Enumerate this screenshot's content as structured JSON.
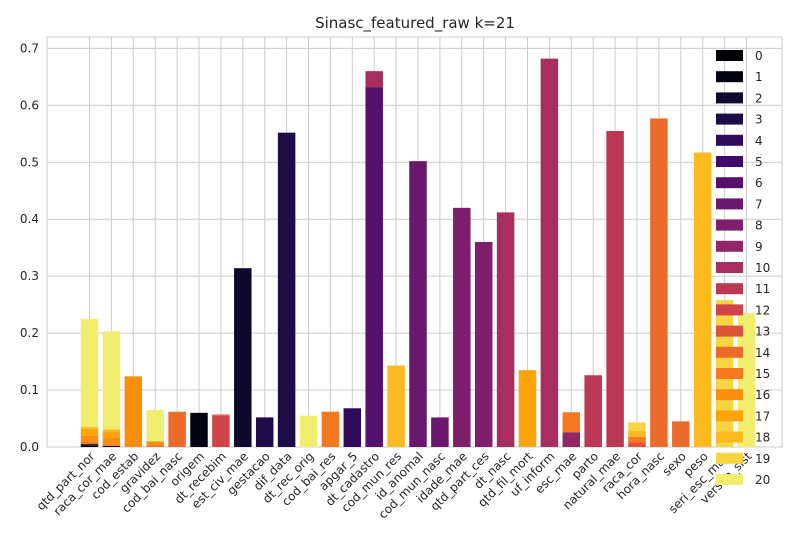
{
  "chart_data": {
    "type": "bar",
    "stacked": true,
    "title": "Sinasc_featured_raw k=21",
    "xlabel": "",
    "ylabel": "",
    "ylim": [
      0,
      0.72
    ],
    "yticks": [
      "0.0",
      "0.1",
      "0.2",
      "0.3",
      "0.4",
      "0.5",
      "0.6",
      "0.7"
    ],
    "grid": true,
    "legend_placement": "right",
    "categories": [
      "qtd_part_nor",
      "raca_cor_mae",
      "cod_estab",
      "gravidez",
      "cod_bai_nasc",
      "origem",
      "dt_recebim",
      "est_civ_mae",
      "gestacao",
      "dif_data",
      "dt_rec_orig",
      "cod_bai_res",
      "apgar_5",
      "dt_cadastro",
      "cod_mun_res",
      "id_anomal",
      "cod_mun_nasc",
      "idade_mae",
      "qtd_part_ces",
      "dt_nasc",
      "qtd_fil_mort",
      "uf_inform",
      "esc_mae",
      "parto",
      "natural_mae",
      "raca_cor",
      "hora_nasc",
      "sexo",
      "peso",
      "seri_esc_mae",
      "versao_sist"
    ],
    "series": [
      {
        "name": "0",
        "values": [
          0.003,
          0.001,
          0,
          0,
          0,
          0,
          0,
          0,
          0,
          0,
          0,
          0,
          0,
          0,
          0,
          0,
          0,
          0,
          0,
          0,
          0,
          0,
          0,
          0,
          0,
          0,
          0,
          0,
          0,
          0,
          0
        ]
      },
      {
        "name": "1",
        "values": [
          0.002,
          0.001,
          0,
          0,
          0,
          0.06,
          0,
          0,
          0,
          0,
          0,
          0,
          0,
          0,
          0,
          0,
          0,
          0,
          0,
          0,
          0,
          0,
          0,
          0,
          0,
          0,
          0,
          0,
          0,
          0,
          0
        ]
      },
      {
        "name": "2",
        "values": [
          0,
          0,
          0,
          0,
          0,
          0,
          0,
          0.314,
          0,
          0,
          0,
          0,
          0,
          0,
          0,
          0,
          0,
          0,
          0,
          0,
          0,
          0,
          0,
          0,
          0,
          0,
          0,
          0,
          0,
          0,
          0
        ]
      },
      {
        "name": "3",
        "values": [
          0,
          0,
          0,
          0,
          0,
          0,
          0,
          0,
          0.052,
          0.552,
          0,
          0,
          0,
          0,
          0,
          0,
          0,
          0,
          0,
          0,
          0,
          0,
          0,
          0,
          0,
          0,
          0,
          0,
          0,
          0,
          0
        ]
      },
      {
        "name": "4",
        "values": [
          0,
          0,
          0,
          0,
          0,
          0,
          0,
          0,
          0,
          0,
          0,
          0,
          0.068,
          0,
          0,
          0,
          0,
          0,
          0,
          0,
          0,
          0,
          0,
          0,
          0,
          0,
          0,
          0,
          0,
          0,
          0
        ]
      },
      {
        "name": "5",
        "values": [
          0,
          0,
          0,
          0,
          0,
          0,
          0,
          0,
          0,
          0,
          0,
          0,
          0,
          0,
          0,
          0,
          0,
          0,
          0,
          0,
          0,
          0,
          0,
          0,
          0,
          0,
          0,
          0,
          0,
          0,
          0
        ]
      },
      {
        "name": "6",
        "values": [
          0,
          0,
          0,
          0,
          0,
          0,
          0,
          0,
          0,
          0,
          0,
          0,
          0,
          0.632,
          0,
          0,
          0,
          0,
          0,
          0,
          0,
          0,
          0,
          0,
          0,
          0,
          0,
          0,
          0,
          0,
          0
        ]
      },
      {
        "name": "7",
        "values": [
          0,
          0,
          0,
          0,
          0,
          0,
          0,
          0,
          0,
          0,
          0,
          0,
          0,
          0,
          0,
          0.502,
          0.052,
          0,
          0,
          0,
          0,
          0,
          0,
          0,
          0,
          0,
          0,
          0,
          0,
          0,
          0
        ]
      },
      {
        "name": "8",
        "values": [
          0,
          0,
          0,
          0,
          0,
          0,
          0,
          0,
          0,
          0,
          0,
          0,
          0,
          0,
          0,
          0,
          0,
          0.42,
          0.36,
          0,
          0,
          0,
          0,
          0,
          0,
          0,
          0,
          0,
          0,
          0,
          0
        ]
      },
      {
        "name": "9",
        "values": [
          0,
          0,
          0,
          0,
          0,
          0,
          0,
          0,
          0,
          0,
          0,
          0,
          0,
          0,
          0,
          0,
          0,
          0,
          0,
          0,
          0,
          0,
          0.026,
          0,
          0,
          0,
          0,
          0,
          0,
          0,
          0
        ]
      },
      {
        "name": "10",
        "values": [
          0,
          0,
          0,
          0,
          0,
          0,
          0,
          0,
          0,
          0,
          0,
          0,
          0,
          0.028,
          0,
          0,
          0,
          0,
          0,
          0.412,
          0,
          0.682,
          0,
          0,
          0,
          0,
          0,
          0,
          0,
          0,
          0
        ]
      },
      {
        "name": "11",
        "values": [
          0,
          0,
          0,
          0,
          0,
          0,
          0,
          0,
          0,
          0,
          0,
          0,
          0,
          0,
          0,
          0,
          0,
          0,
          0,
          0,
          0,
          0,
          0,
          0.126,
          0.555,
          0,
          0,
          0,
          0,
          0,
          0
        ]
      },
      {
        "name": "12",
        "values": [
          0,
          0,
          0,
          0,
          0,
          0,
          0.055,
          0,
          0,
          0,
          0,
          0,
          0,
          0,
          0,
          0,
          0,
          0,
          0,
          0,
          0,
          0,
          0,
          0,
          0,
          0,
          0,
          0,
          0,
          0,
          0
        ]
      },
      {
        "name": "13",
        "values": [
          0,
          0,
          0,
          0,
          0,
          0,
          0.002,
          0,
          0,
          0,
          0,
          0,
          0,
          0,
          0,
          0,
          0,
          0,
          0,
          0,
          0,
          0,
          0,
          0,
          0,
          0.008,
          0,
          0,
          0,
          0,
          0
        ]
      },
      {
        "name": "14",
        "values": [
          0,
          0,
          0,
          0,
          0.062,
          0,
          0,
          0,
          0,
          0,
          0,
          0,
          0,
          0,
          0,
          0,
          0,
          0,
          0,
          0,
          0,
          0,
          0,
          0,
          0,
          0,
          0.577,
          0.045,
          0,
          0,
          0
        ]
      },
      {
        "name": "15",
        "values": [
          0.005,
          0.003,
          0,
          0.004,
          0,
          0,
          0,
          0,
          0,
          0,
          0,
          0.062,
          0,
          0,
          0,
          0,
          0,
          0,
          0,
          0,
          0,
          0,
          0.035,
          0,
          0,
          0.01,
          0,
          0,
          0,
          0,
          0
        ]
      },
      {
        "name": "16",
        "values": [
          0.01,
          0.012,
          0.124,
          0.006,
          0,
          0,
          0,
          0,
          0,
          0,
          0,
          0,
          0,
          0,
          0,
          0,
          0,
          0,
          0,
          0,
          0,
          0,
          0,
          0,
          0,
          0,
          0,
          0,
          0,
          0,
          0
        ]
      },
      {
        "name": "17",
        "values": [
          0.012,
          0.01,
          0,
          0,
          0,
          0,
          0,
          0,
          0,
          0,
          0,
          0,
          0,
          0,
          0,
          0,
          0,
          0,
          0,
          0,
          0.135,
          0,
          0,
          0,
          0,
          0,
          0,
          0,
          0,
          0,
          0
        ]
      },
      {
        "name": "18",
        "values": [
          0.003,
          0.004,
          0,
          0,
          0,
          0,
          0,
          0,
          0,
          0,
          0,
          0,
          0,
          0,
          0.143,
          0,
          0,
          0,
          0,
          0,
          0,
          0,
          0,
          0,
          0,
          0.01,
          0,
          0,
          0.517,
          0,
          0
        ]
      },
      {
        "name": "19",
        "values": [
          0,
          0,
          0,
          0,
          0,
          0,
          0,
          0,
          0,
          0,
          0,
          0,
          0,
          0,
          0,
          0,
          0,
          0,
          0,
          0,
          0,
          0,
          0,
          0,
          0,
          0.015,
          0,
          0,
          0,
          0.258,
          0
        ]
      },
      {
        "name": "20",
        "values": [
          0.19,
          0.172,
          0,
          0.055,
          0,
          0,
          0,
          0,
          0,
          0,
          0.055,
          0,
          0,
          0,
          0,
          0,
          0,
          0,
          0,
          0,
          0,
          0,
          0,
          0,
          0,
          0,
          0,
          0,
          0,
          0,
          0.235
        ]
      }
    ],
    "colors": [
      "#000004",
      "#040312",
      "#0e092c",
      "#1d0c47",
      "#300a5b",
      "#420a68",
      "#56106e",
      "#6a176e",
      "#7e1e6c",
      "#932667",
      "#a82e5f",
      "#bc3754",
      "#cf4446",
      "#dd513a",
      "#ec6a2a",
      "#f5791f",
      "#fa8e0b",
      "#fca40a",
      "#fbba1f",
      "#f6d543",
      "#f1ed6f"
    ]
  }
}
